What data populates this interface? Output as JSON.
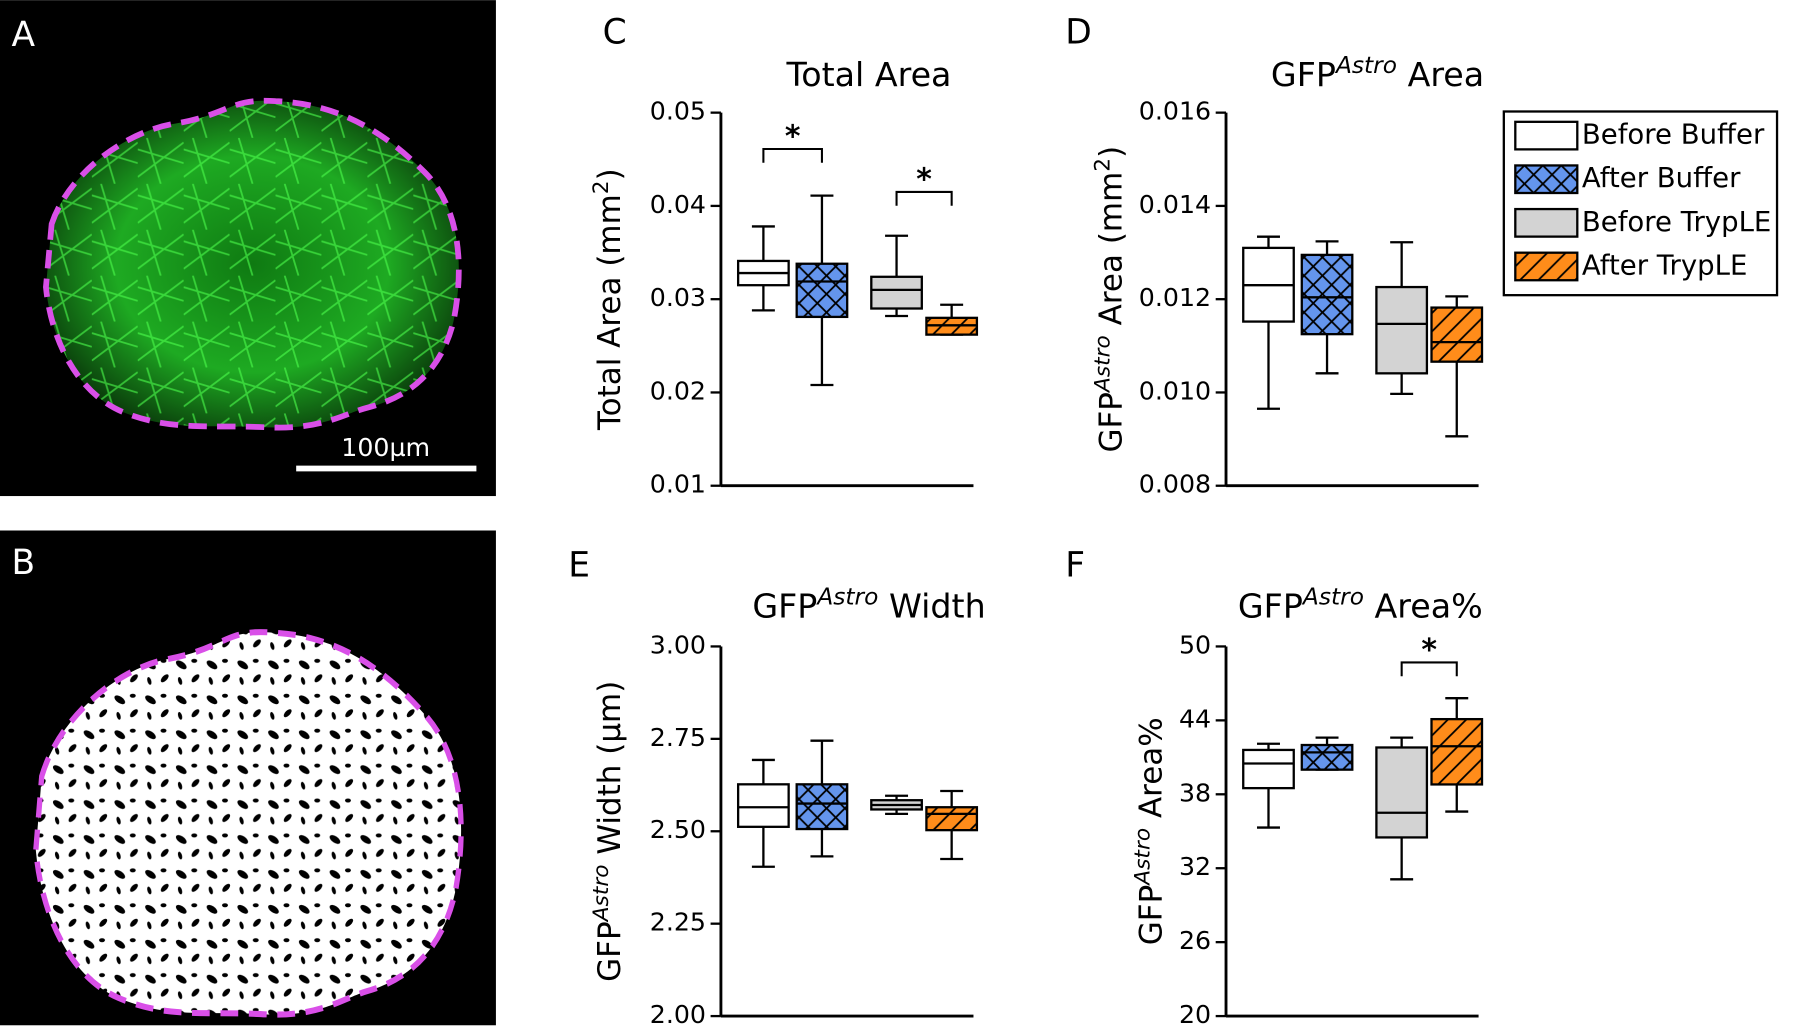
{
  "images": [
    {
      "label": "A",
      "scale_bar": "100µm"
    },
    {
      "label": "B"
    }
  ],
  "legend": [
    {
      "name": "Before Buffer",
      "color": "#ffffff",
      "hatch": "none"
    },
    {
      "name": "After Buffer",
      "color": "#6495ed",
      "hatch": "cross"
    },
    {
      "name": "Before TrypLE",
      "color": "#d3d3d3",
      "hatch": "none"
    },
    {
      "name": "After TrypLE",
      "color": "#ff8c1a",
      "hatch": "diagonal"
    }
  ],
  "chart_data": [
    {
      "type": "box",
      "label": "C",
      "title": [
        {
          "text": "Total Area"
        }
      ],
      "ylabel": [
        {
          "text": "Total Area (mm"
        },
        {
          "text": "2",
          "sup": true
        },
        {
          "text": ")"
        }
      ],
      "ylim": [
        0.01,
        0.05
      ],
      "yticks": [
        0.01,
        0.02,
        0.03,
        0.04,
        0.05
      ],
      "boxes": [
        [
          0.0288,
          0.0315,
          0.0328,
          0.0341,
          0.0378
        ],
        [
          0.0208,
          0.0281,
          0.0319,
          0.0338,
          0.0411
        ],
        [
          0.0282,
          0.029,
          0.031,
          0.0324,
          0.0368
        ],
        [
          0.0262,
          0.0262,
          0.0272,
          0.028,
          0.0294
        ]
      ],
      "annotations": [
        {
          "text": "*",
          "between": [
            0,
            1
          ],
          "y": 0.0461
        },
        {
          "text": "*",
          "between": [
            2,
            3
          ],
          "y": 0.0415
        }
      ]
    },
    {
      "type": "box",
      "label": "D",
      "title": [
        {
          "text": "GFP"
        },
        {
          "text": "Astro",
          "sup": true,
          "italic": true
        },
        {
          "text": " Area"
        }
      ],
      "ylabel": [
        {
          "text": "GFP"
        },
        {
          "text": "Astro",
          "sup": true,
          "italic": true
        },
        {
          "text": " Area (mm"
        },
        {
          "text": "2",
          "sup": true
        },
        {
          "text": ")"
        }
      ],
      "ylim": [
        0.008,
        0.016
      ],
      "yticks": [
        0.008,
        {
          "value": 0.01,
          "label": "0.010"
        },
        0.012,
        0.014,
        0.016
      ],
      "boxes": [
        [
          0.00965,
          0.01152,
          0.0123,
          0.0131,
          0.01334
        ],
        [
          0.01041,
          0.01125,
          0.01204,
          0.01295,
          0.01324
        ],
        [
          0.00997,
          0.01041,
          0.01147,
          0.01226,
          0.01322
        ],
        [
          0.00906,
          0.01066,
          0.01108,
          0.01182,
          0.01206
        ]
      ],
      "annotations": []
    },
    {
      "type": "box",
      "label": "E",
      "title": [
        {
          "text": "GFP"
        },
        {
          "text": "Astro",
          "sup": true,
          "italic": true
        },
        {
          "text": " Width"
        }
      ],
      "ylabel": [
        {
          "text": "GFP"
        },
        {
          "text": "Astro",
          "sup": true,
          "italic": true
        },
        {
          "text": " Width (µm)"
        }
      ],
      "ylim": [
        2.0,
        3.0
      ],
      "yticks": [
        {
          "value": 2.0,
          "label": "2.00"
        },
        2.25,
        {
          "value": 2.5,
          "label": "2.50"
        },
        2.75,
        {
          "value": 3.0,
          "label": "3.00"
        }
      ],
      "boxes": [
        [
          2.404,
          2.512,
          2.565,
          2.627,
          2.693
        ],
        [
          2.432,
          2.506,
          2.575,
          2.627,
          2.745
        ],
        [
          2.547,
          2.559,
          2.571,
          2.584,
          2.596
        ],
        [
          2.425,
          2.503,
          2.547,
          2.565,
          2.609
        ]
      ],
      "annotations": []
    },
    {
      "type": "box",
      "label": "F",
      "title": [
        {
          "text": "GFP"
        },
        {
          "text": "Astro",
          "sup": true,
          "italic": true
        },
        {
          "text": " Area%"
        }
      ],
      "ylabel": [
        {
          "text": "GFP"
        },
        {
          "text": "Astro",
          "sup": true,
          "italic": true
        },
        {
          "text": " Area%"
        }
      ],
      "ylim": [
        20,
        50
      ],
      "yticks": [
        20,
        26,
        32,
        38,
        44,
        50
      ],
      "boxes": [
        [
          35.3,
          38.5,
          40.5,
          41.6,
          42.1
        ],
        [
          40.0,
          40.0,
          41.4,
          42.0,
          42.6
        ],
        [
          31.1,
          34.5,
          36.5,
          41.8,
          42.6
        ],
        [
          36.6,
          38.8,
          41.9,
          44.1,
          45.8
        ]
      ],
      "annotations": [
        {
          "text": "*",
          "between": [
            2,
            3
          ],
          "y": 48.7
        }
      ]
    }
  ]
}
